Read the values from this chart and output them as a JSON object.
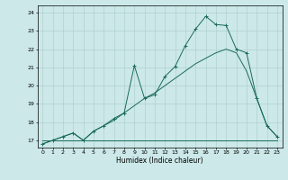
{
  "xlabel": "Humidex (Indice chaleur)",
  "bg_color": "#cce8e8",
  "line_color": "#1a6b5a",
  "grid_color": "#aacccc",
  "xlim": [
    -0.5,
    23.5
  ],
  "ylim": [
    16.6,
    24.4
  ],
  "xticks": [
    0,
    1,
    2,
    3,
    4,
    5,
    6,
    7,
    8,
    9,
    10,
    11,
    12,
    13,
    14,
    15,
    16,
    17,
    18,
    19,
    20,
    21,
    22,
    23
  ],
  "yticks": [
    17,
    18,
    19,
    20,
    21,
    22,
    23,
    24
  ],
  "series": [
    {
      "x": [
        0,
        1,
        2,
        3,
        4,
        5,
        6,
        7,
        8,
        9,
        10,
        11,
        12,
        13,
        14,
        15,
        16,
        17,
        18,
        19,
        20,
        21,
        22,
        23
      ],
      "y": [
        16.8,
        17.0,
        17.2,
        17.4,
        17.0,
        17.5,
        17.8,
        18.2,
        18.5,
        21.1,
        19.3,
        19.5,
        20.5,
        21.05,
        22.2,
        23.1,
        23.8,
        23.35,
        23.3,
        22.0,
        21.8,
        19.3,
        17.8,
        17.2
      ],
      "marker": true
    },
    {
      "x": [
        0,
        1,
        2,
        3,
        4,
        5,
        6,
        7,
        8,
        9,
        10,
        11,
        12,
        13,
        14,
        15,
        16,
        17,
        18,
        19,
        20,
        21,
        22,
        23
      ],
      "y": [
        16.8,
        17.0,
        17.2,
        17.4,
        17.0,
        17.5,
        17.8,
        18.1,
        18.5,
        18.9,
        19.3,
        19.6,
        20.0,
        20.4,
        20.8,
        21.2,
        21.5,
        21.8,
        22.0,
        21.8,
        20.8,
        19.3,
        17.8,
        17.2
      ],
      "marker": false
    },
    {
      "x": [
        0,
        10,
        23
      ],
      "y": [
        17.0,
        17.0,
        17.0
      ],
      "marker": false
    }
  ]
}
